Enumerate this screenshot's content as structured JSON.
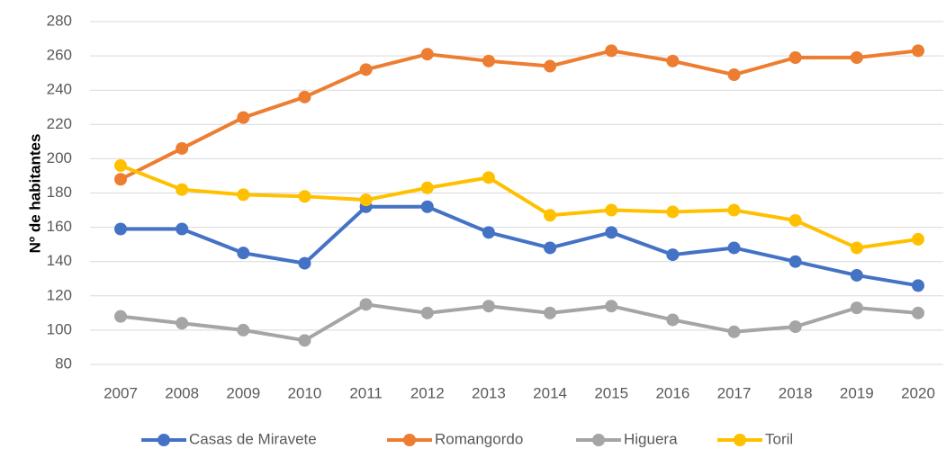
{
  "chart_data": {
    "type": "line",
    "y_label": "Nº de habitantes",
    "categories": [
      "2007",
      "2008",
      "2009",
      "2010",
      "2011",
      "2012",
      "2013",
      "2014",
      "2015",
      "2016",
      "2017",
      "2018",
      "2019",
      "2020"
    ],
    "series": [
      {
        "name": "Casas de Miravete",
        "color": "#4472c4",
        "values": [
          159,
          159,
          145,
          139,
          172,
          172,
          157,
          148,
          157,
          144,
          148,
          140,
          132,
          126
        ]
      },
      {
        "name": "Romangordo",
        "color": "#ed7d31",
        "values": [
          188,
          206,
          224,
          236,
          252,
          261,
          257,
          254,
          263,
          257,
          249,
          259,
          259,
          263
        ]
      },
      {
        "name": "Higuera",
        "color": "#a5a5a5",
        "values": [
          108,
          104,
          100,
          94,
          115,
          110,
          114,
          110,
          114,
          106,
          99,
          102,
          113,
          110
        ]
      },
      {
        "name": "Toril",
        "color": "#ffc000",
        "values": [
          196,
          182,
          179,
          178,
          176,
          183,
          189,
          167,
          170,
          169,
          170,
          164,
          148,
          153
        ]
      }
    ],
    "ylim": [
      80,
      280
    ],
    "yticks": [
      80,
      100,
      120,
      140,
      160,
      180,
      200,
      220,
      240,
      260,
      280
    ],
    "grid": true,
    "legend": "bottom"
  }
}
